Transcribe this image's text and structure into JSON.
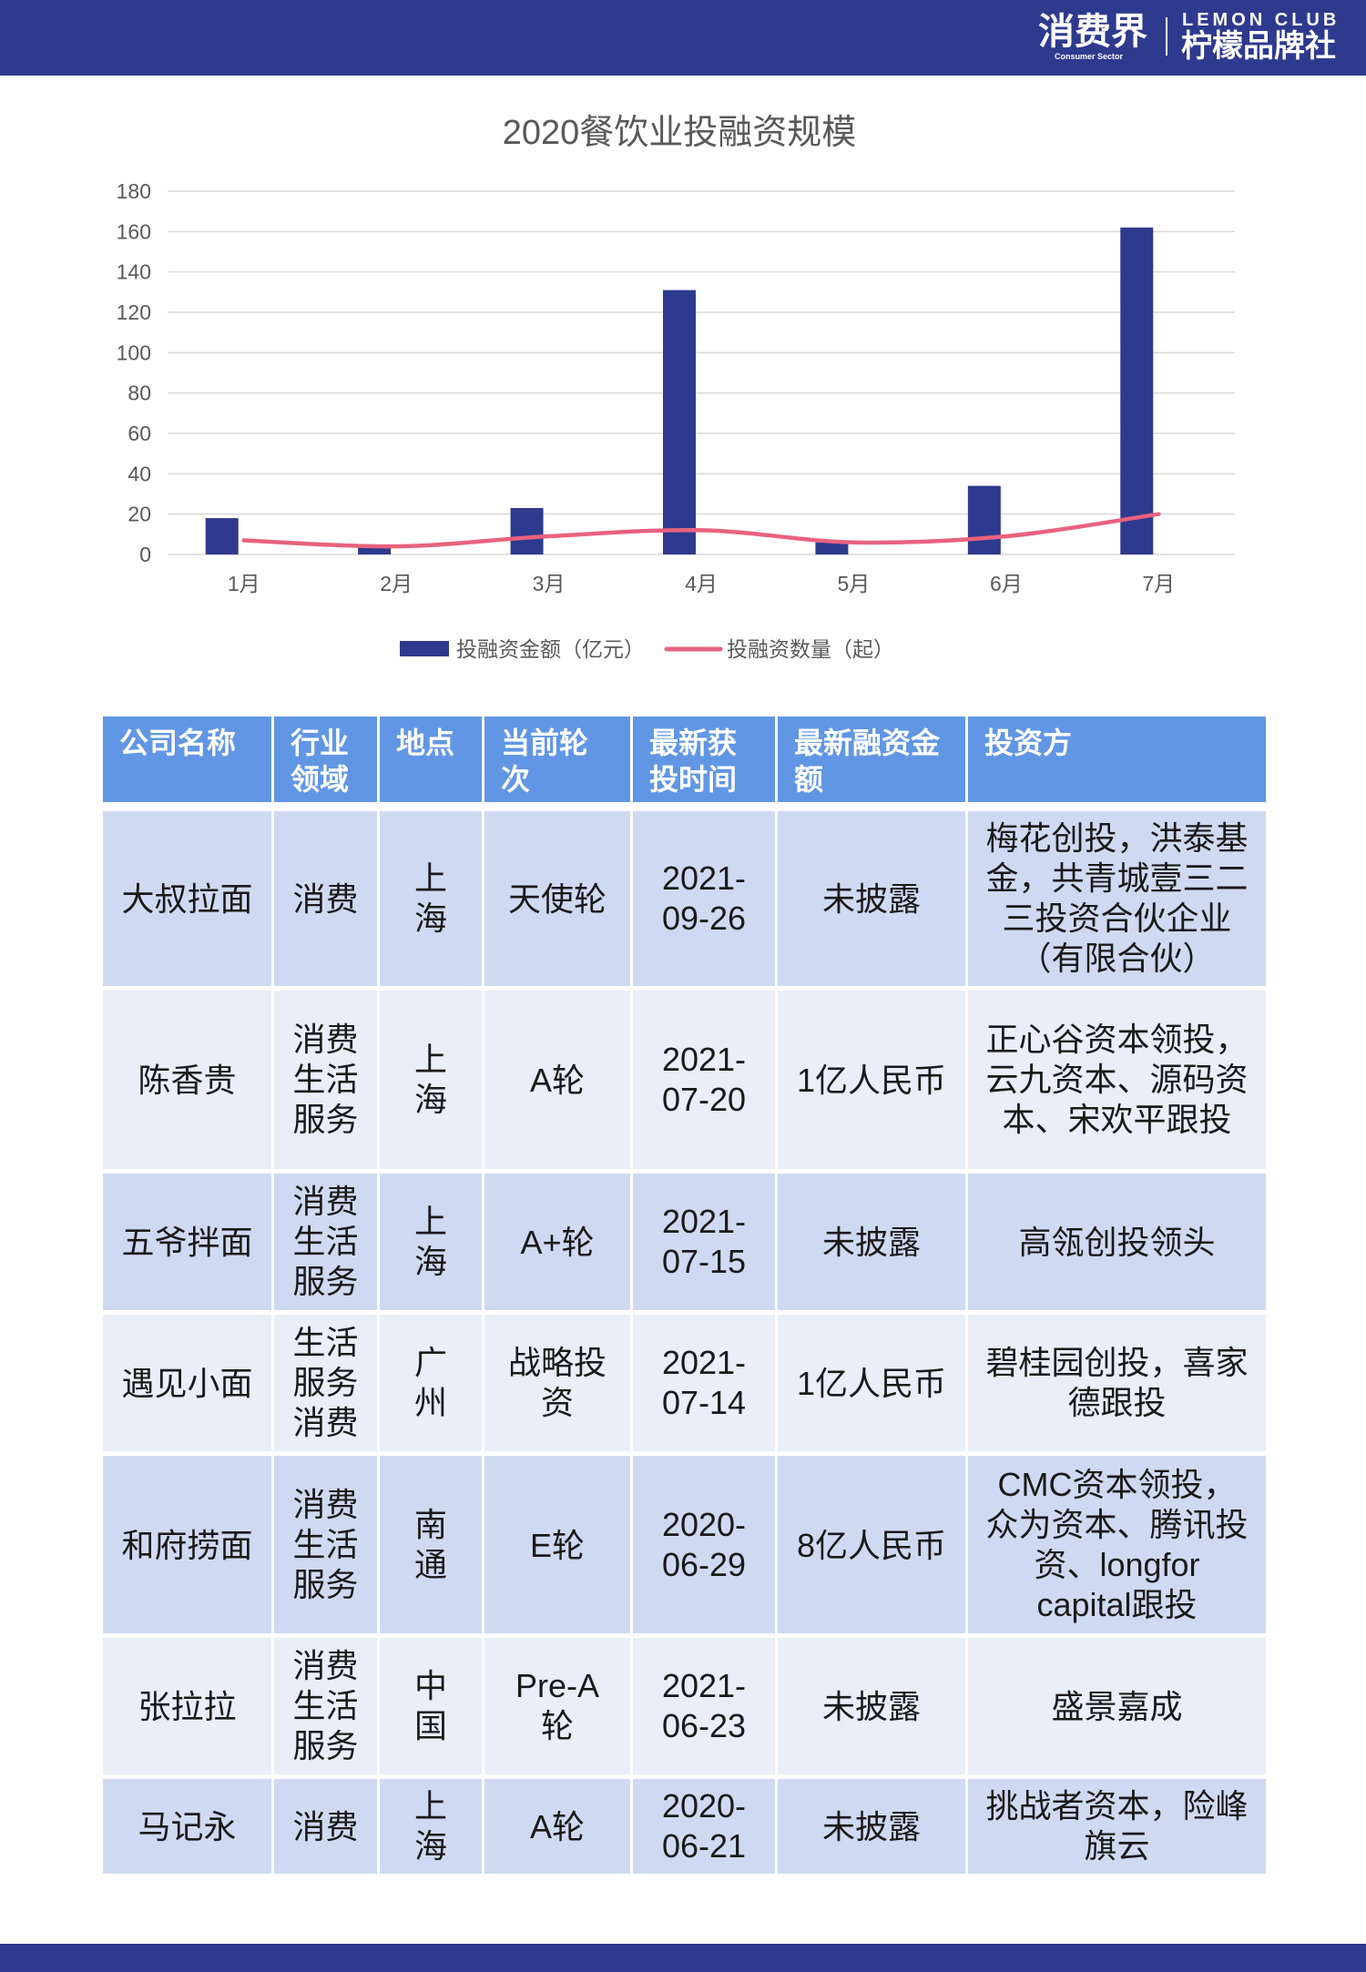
{
  "header": {
    "brand_cn": "消费界",
    "brand_en": "Consumer Sector",
    "club_en": "LEMON CLUB",
    "club_cn": "柠檬品牌社"
  },
  "colors": {
    "navy": "#2e3a8e",
    "table_header": "#6196e4",
    "row_dark": "#cfdaf2",
    "row_light": "#e9eef9",
    "bar": "#2e3a8e",
    "line": "#e8627e",
    "grid": "#d9d9d9",
    "axis_text": "#595959"
  },
  "chart_data": [
    {
      "type": "bar",
      "title": "2020餐饮业投融资规模",
      "categories": [
        "1月",
        "2月",
        "3月",
        "4月",
        "5月",
        "6月",
        "7月"
      ],
      "series": [
        {
          "name": "投融资金额（亿元）",
          "type": "bar",
          "values": [
            18,
            4,
            23,
            131,
            6,
            34,
            162
          ]
        },
        {
          "name": "投融资数量（起）",
          "type": "line",
          "values": [
            7,
            4,
            9,
            12,
            6,
            9,
            20
          ]
        }
      ],
      "ylim": [
        0,
        180
      ],
      "yticks": [
        0,
        20,
        40,
        60,
        80,
        100,
        120,
        140,
        160,
        180
      ],
      "grid": true,
      "legend": "bottom"
    },
    {
      "type": "table",
      "columns": [
        "公司名称",
        "行业领域",
        "地点",
        "当前轮次",
        "最新获投时间",
        "最新融资金额",
        "投资方"
      ],
      "rows": [
        {
          "company": "大叔拉面",
          "industry": "消费",
          "location": "上海",
          "round": "天使轮",
          "date": "2021-09-26",
          "amount": "未披露",
          "investors": "梅花创投，洪泰基金，共青城壹三二三投资合伙企业（有限合伙）"
        },
        {
          "company": "陈香贵",
          "industry": "消费生活服务",
          "location": "上海",
          "round": "A轮",
          "date": "2021-07-20",
          "amount": "1亿人民币",
          "investors": "正心谷资本领投，云九资本、源码资本、宋欢平跟投"
        },
        {
          "company": "五爷拌面",
          "industry": "消费生活服务",
          "location": "上海",
          "round": "A+轮",
          "date": "2021-07-15",
          "amount": "未披露",
          "investors": "高瓴创投领头"
        },
        {
          "company": "遇见小面",
          "industry": "生活服务消费",
          "location": "广州",
          "round": "战略投资",
          "date": "2021-07-14",
          "amount": "1亿人民币",
          "investors": "碧桂园创投，喜家德跟投"
        },
        {
          "company": "和府捞面",
          "industry": "消费生活服务",
          "location": "南通",
          "round": "E轮",
          "date": "2020-06-29",
          "amount": "8亿人民币",
          "investors": "CMC资本领投，众为资本、腾讯投资、longfor capital跟投"
        },
        {
          "company": "张拉拉",
          "industry": "消费生活服务",
          "location": "中国",
          "round": "Pre-A轮",
          "date": "2021-06-23",
          "amount": "未披露",
          "investors": "盛景嘉成"
        },
        {
          "company": "马记永",
          "industry": "消费",
          "location": "上海",
          "round": "A轮",
          "date": "2020-06-21",
          "amount": "未披露",
          "investors": "挑战者资本，险峰旗云"
        }
      ]
    }
  ]
}
